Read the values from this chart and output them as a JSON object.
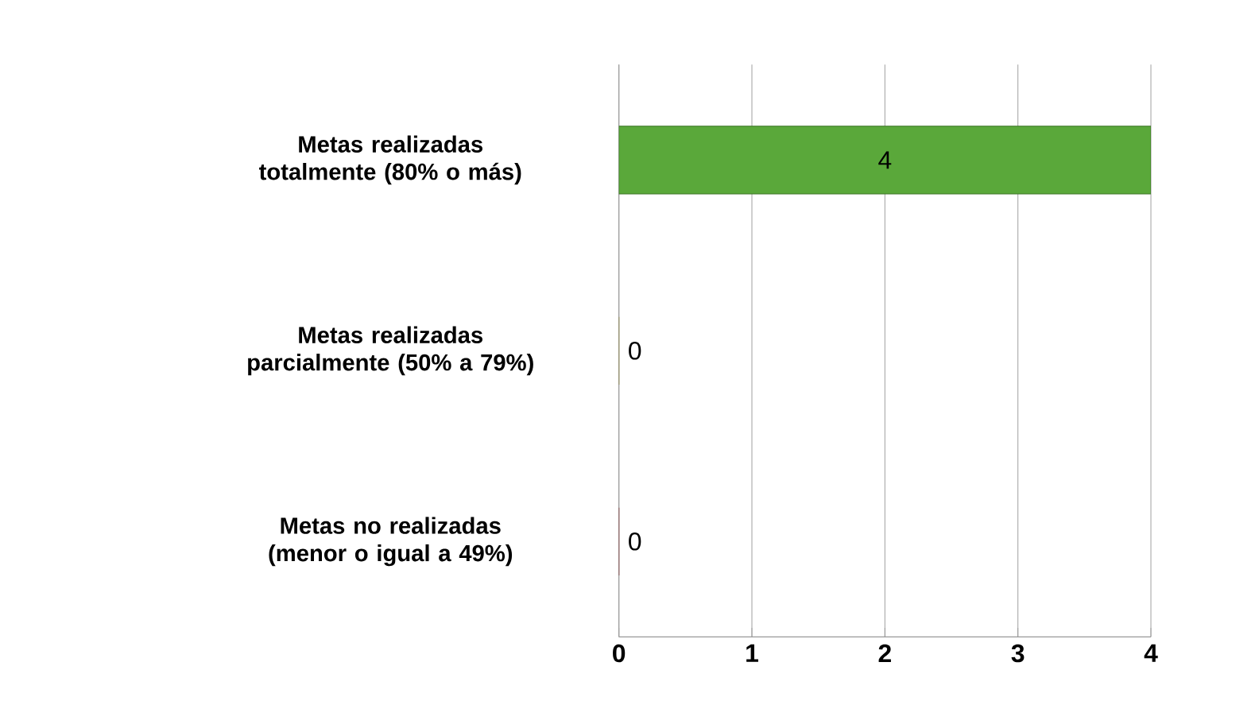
{
  "chart_data": {
    "type": "bar",
    "orientation": "horizontal",
    "categories": [
      "Metas realizadas totalmente (80% o más)",
      "Metas realizadas parcialmente (50% a 79%)",
      "Metas no realizadas (menor o igual a 49%)"
    ],
    "values": [
      4,
      0,
      0
    ],
    "colors": [
      "#5aa83a",
      "#c2b02a",
      "#a81c1c"
    ],
    "xlim": [
      0,
      4
    ],
    "xticks": [
      0,
      1,
      2,
      3,
      4
    ],
    "grid": "x",
    "data_labels": true
  }
}
